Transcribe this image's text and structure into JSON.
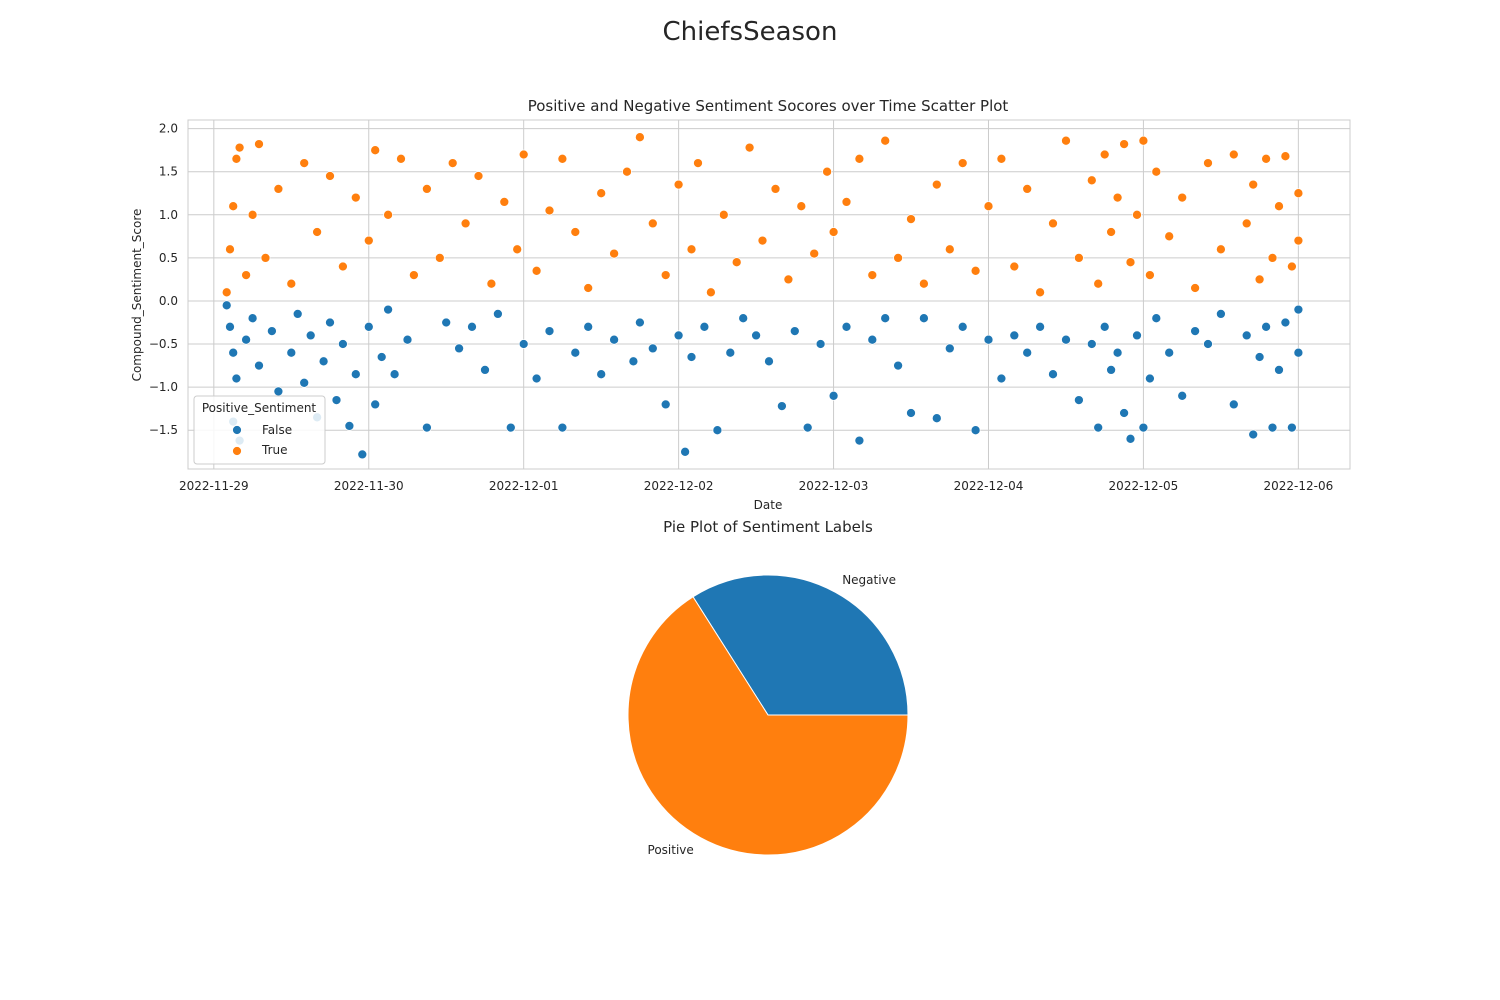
{
  "figure": {
    "title": "ChiefsSeason"
  },
  "chart_data": [
    {
      "type": "scatter",
      "title": "Positive and Negative Sentiment Socores over Time Scatter Plot",
      "xlabel": "Date",
      "ylabel": "Compound_Sentiment_Score",
      "xlim": [
        "2022-11-28T20:00",
        "2022-12-06T08:00"
      ],
      "ylim": [
        -1.95,
        2.1
      ],
      "x_ticks": [
        "2022-11-29",
        "2022-11-30",
        "2022-12-01",
        "2022-12-02",
        "2022-12-03",
        "2022-12-04",
        "2022-12-05",
        "2022-12-06"
      ],
      "y_ticks": [
        -1.5,
        -1.0,
        -0.5,
        0.0,
        0.5,
        1.0,
        1.5,
        2.0
      ],
      "y_tick_labels": [
        "−1.5",
        "−1.0",
        "−0.5",
        "0.0",
        "0.5",
        "1.0",
        "1.5",
        "2.0"
      ],
      "grid": true,
      "legend": {
        "title": "Positive_Sentiment",
        "placement": "lower-left",
        "entries": [
          {
            "label": "False",
            "color": "#1f77b4"
          },
          {
            "label": "True",
            "color": "#ff7f0e"
          }
        ]
      },
      "series": [
        {
          "name": "False",
          "color": "#1f77b4",
          "points": [
            [
              "2022-11-29T02:00",
              -0.05
            ],
            [
              "2022-11-29T02:30",
              -0.3
            ],
            [
              "2022-11-29T03:00",
              -0.6
            ],
            [
              "2022-11-29T03:30",
              -0.9
            ],
            [
              "2022-11-29T03:00",
              -1.4
            ],
            [
              "2022-11-29T04:00",
              -1.62
            ],
            [
              "2022-11-29T05:00",
              -0.45
            ],
            [
              "2022-11-29T06:00",
              -0.2
            ],
            [
              "2022-11-29T07:00",
              -0.75
            ],
            [
              "2022-11-29T09:00",
              -0.35
            ],
            [
              "2022-11-29T10:00",
              -1.05
            ],
            [
              "2022-11-29T12:00",
              -0.6
            ],
            [
              "2022-11-29T13:00",
              -0.15
            ],
            [
              "2022-11-29T14:00",
              -0.95
            ],
            [
              "2022-11-29T15:00",
              -0.4
            ],
            [
              "2022-11-29T16:00",
              -1.35
            ],
            [
              "2022-11-29T17:00",
              -0.7
            ],
            [
              "2022-11-29T18:00",
              -0.25
            ],
            [
              "2022-11-29T19:00",
              -1.15
            ],
            [
              "2022-11-29T20:00",
              -0.5
            ],
            [
              "2022-11-29T21:00",
              -1.45
            ],
            [
              "2022-11-29T22:00",
              -0.85
            ],
            [
              "2022-11-29T23:00",
              -1.78
            ],
            [
              "2022-11-30T00:00",
              -0.3
            ],
            [
              "2022-11-30T01:00",
              -1.2
            ],
            [
              "2022-11-30T02:00",
              -0.65
            ],
            [
              "2022-11-30T03:00",
              -0.1
            ],
            [
              "2022-11-30T04:00",
              -0.85
            ],
            [
              "2022-11-30T06:00",
              -0.45
            ],
            [
              "2022-11-30T09:00",
              -1.47
            ],
            [
              "2022-11-30T12:00",
              -0.25
            ],
            [
              "2022-11-30T14:00",
              -0.55
            ],
            [
              "2022-11-30T16:00",
              -0.3
            ],
            [
              "2022-11-30T18:00",
              -0.8
            ],
            [
              "2022-11-30T20:00",
              -0.15
            ],
            [
              "2022-11-30T22:00",
              -1.47
            ],
            [
              "2022-12-01T00:00",
              -0.5
            ],
            [
              "2022-12-01T02:00",
              -0.9
            ],
            [
              "2022-12-01T04:00",
              -0.35
            ],
            [
              "2022-12-01T06:00",
              -1.47
            ],
            [
              "2022-12-01T08:00",
              -0.6
            ],
            [
              "2022-12-01T10:00",
              -0.3
            ],
            [
              "2022-12-01T12:00",
              -0.85
            ],
            [
              "2022-12-01T14:00",
              -0.45
            ],
            [
              "2022-12-01T17:00",
              -0.7
            ],
            [
              "2022-12-01T18:00",
              -0.25
            ],
            [
              "2022-12-01T20:00",
              -0.55
            ],
            [
              "2022-12-01T22:00",
              -1.2
            ],
            [
              "2022-12-02T00:00",
              -0.4
            ],
            [
              "2022-12-02T01:00",
              -1.75
            ],
            [
              "2022-12-02T02:00",
              -0.65
            ],
            [
              "2022-12-02T04:00",
              -0.3
            ],
            [
              "2022-12-02T06:00",
              -1.5
            ],
            [
              "2022-12-02T08:00",
              -0.6
            ],
            [
              "2022-12-02T10:00",
              -0.2
            ],
            [
              "2022-12-02T12:00",
              -0.4
            ],
            [
              "2022-12-02T14:00",
              -0.7
            ],
            [
              "2022-12-02T16:00",
              -1.22
            ],
            [
              "2022-12-02T18:00",
              -0.35
            ],
            [
              "2022-12-02T20:00",
              -1.47
            ],
            [
              "2022-12-02T22:00",
              -0.5
            ],
            [
              "2022-12-03T00:00",
              -1.1
            ],
            [
              "2022-12-03T02:00",
              -0.3
            ],
            [
              "2022-12-03T04:00",
              -1.62
            ],
            [
              "2022-12-03T06:00",
              -0.45
            ],
            [
              "2022-12-03T08:00",
              -0.2
            ],
            [
              "2022-12-03T10:00",
              -0.75
            ],
            [
              "2022-12-03T12:00",
              -1.3
            ],
            [
              "2022-12-03T14:00",
              -0.2
            ],
            [
              "2022-12-03T16:00",
              -1.36
            ],
            [
              "2022-12-03T18:00",
              -0.55
            ],
            [
              "2022-12-03T20:00",
              -0.3
            ],
            [
              "2022-12-03T22:00",
              -1.5
            ],
            [
              "2022-12-04T00:00",
              -0.45
            ],
            [
              "2022-12-04T02:00",
              -0.9
            ],
            [
              "2022-12-04T04:00",
              -0.4
            ],
            [
              "2022-12-04T06:00",
              -0.6
            ],
            [
              "2022-12-04T08:00",
              -0.3
            ],
            [
              "2022-12-04T10:00",
              -0.85
            ],
            [
              "2022-12-04T12:00",
              -0.45
            ],
            [
              "2022-12-04T14:00",
              -1.15
            ],
            [
              "2022-12-04T16:00",
              -0.5
            ],
            [
              "2022-12-04T17:00",
              -1.47
            ],
            [
              "2022-12-04T18:00",
              -0.3
            ],
            [
              "2022-12-04T19:00",
              -0.8
            ],
            [
              "2022-12-04T20:00",
              -0.6
            ],
            [
              "2022-12-04T21:00",
              -1.3
            ],
            [
              "2022-12-04T22:00",
              -1.6
            ],
            [
              "2022-12-04T23:00",
              -0.4
            ],
            [
              "2022-12-05T00:00",
              -1.47
            ],
            [
              "2022-12-05T01:00",
              -0.9
            ],
            [
              "2022-12-05T02:00",
              -0.2
            ],
            [
              "2022-12-05T04:00",
              -0.6
            ],
            [
              "2022-12-05T06:00",
              -1.1
            ],
            [
              "2022-12-05T08:00",
              -0.35
            ],
            [
              "2022-12-05T10:00",
              -0.5
            ],
            [
              "2022-12-05T12:00",
              -0.15
            ],
            [
              "2022-12-05T14:00",
              -1.2
            ],
            [
              "2022-12-05T16:00",
              -0.4
            ],
            [
              "2022-12-05T17:00",
              -1.55
            ],
            [
              "2022-12-05T18:00",
              -0.65
            ],
            [
              "2022-12-05T19:00",
              -0.3
            ],
            [
              "2022-12-05T20:00",
              -1.47
            ],
            [
              "2022-12-05T21:00",
              -0.8
            ],
            [
              "2022-12-05T22:00",
              -0.25
            ],
            [
              "2022-12-05T23:00",
              -1.47
            ],
            [
              "2022-12-06T00:00",
              -0.6
            ],
            [
              "2022-12-06T00:00",
              -0.1
            ]
          ]
        },
        {
          "name": "True",
          "color": "#ff7f0e",
          "points": [
            [
              "2022-11-29T02:00",
              0.1
            ],
            [
              "2022-11-29T02:30",
              0.6
            ],
            [
              "2022-11-29T03:00",
              1.1
            ],
            [
              "2022-11-29T03:30",
              1.65
            ],
            [
              "2022-11-29T04:00",
              1.78
            ],
            [
              "2022-11-29T05:00",
              0.3
            ],
            [
              "2022-11-29T06:00",
              1.0
            ],
            [
              "2022-11-29T07:00",
              1.82
            ],
            [
              "2022-11-29T08:00",
              0.5
            ],
            [
              "2022-11-29T10:00",
              1.3
            ],
            [
              "2022-11-29T12:00",
              0.2
            ],
            [
              "2022-11-29T14:00",
              1.6
            ],
            [
              "2022-11-29T16:00",
              0.8
            ],
            [
              "2022-11-29T18:00",
              1.45
            ],
            [
              "2022-11-29T20:00",
              0.4
            ],
            [
              "2022-11-29T22:00",
              1.2
            ],
            [
              "2022-11-30T00:00",
              0.7
            ],
            [
              "2022-11-30T01:00",
              1.75
            ],
            [
              "2022-11-30T03:00",
              1.0
            ],
            [
              "2022-11-30T05:00",
              1.65
            ],
            [
              "2022-11-30T07:00",
              0.3
            ],
            [
              "2022-11-30T09:00",
              1.3
            ],
            [
              "2022-11-30T11:00",
              0.5
            ],
            [
              "2022-11-30T13:00",
              1.6
            ],
            [
              "2022-11-30T15:00",
              0.9
            ],
            [
              "2022-11-30T17:00",
              1.45
            ],
            [
              "2022-11-30T19:00",
              0.2
            ],
            [
              "2022-11-30T21:00",
              1.15
            ],
            [
              "2022-11-30T23:00",
              0.6
            ],
            [
              "2022-12-01T00:00",
              1.7
            ],
            [
              "2022-12-01T02:00",
              0.35
            ],
            [
              "2022-12-01T04:00",
              1.05
            ],
            [
              "2022-12-01T06:00",
              1.65
            ],
            [
              "2022-12-01T08:00",
              0.8
            ],
            [
              "2022-12-01T10:00",
              0.15
            ],
            [
              "2022-12-01T12:00",
              1.25
            ],
            [
              "2022-12-01T14:00",
              0.55
            ],
            [
              "2022-12-01T16:00",
              1.5
            ],
            [
              "2022-12-01T18:00",
              1.9
            ],
            [
              "2022-12-01T20:00",
              0.9
            ],
            [
              "2022-12-01T22:00",
              0.3
            ],
            [
              "2022-12-02T00:00",
              1.35
            ],
            [
              "2022-12-02T02:00",
              0.6
            ],
            [
              "2022-12-02T03:00",
              1.6
            ],
            [
              "2022-12-02T05:00",
              0.1
            ],
            [
              "2022-12-02T07:00",
              1.0
            ],
            [
              "2022-12-02T09:00",
              0.45
            ],
            [
              "2022-12-02T11:00",
              1.78
            ],
            [
              "2022-12-02T13:00",
              0.7
            ],
            [
              "2022-12-02T15:00",
              1.3
            ],
            [
              "2022-12-02T17:00",
              0.25
            ],
            [
              "2022-12-02T19:00",
              1.1
            ],
            [
              "2022-12-02T21:00",
              0.55
            ],
            [
              "2022-12-02T23:00",
              1.5
            ],
            [
              "2022-12-03T00:00",
              0.8
            ],
            [
              "2022-12-03T02:00",
              1.15
            ],
            [
              "2022-12-03T04:00",
              1.65
            ],
            [
              "2022-12-03T06:00",
              0.3
            ],
            [
              "2022-12-03T08:00",
              1.86
            ],
            [
              "2022-12-03T10:00",
              0.5
            ],
            [
              "2022-12-03T12:00",
              0.95
            ],
            [
              "2022-12-03T14:00",
              0.2
            ],
            [
              "2022-12-03T16:00",
              1.35
            ],
            [
              "2022-12-03T18:00",
              0.6
            ],
            [
              "2022-12-03T20:00",
              1.6
            ],
            [
              "2022-12-03T22:00",
              0.35
            ],
            [
              "2022-12-04T00:00",
              1.1
            ],
            [
              "2022-12-04T02:00",
              1.65
            ],
            [
              "2022-12-04T04:00",
              0.4
            ],
            [
              "2022-12-04T06:00",
              1.3
            ],
            [
              "2022-12-04T08:00",
              0.1
            ],
            [
              "2022-12-04T10:00",
              0.9
            ],
            [
              "2022-12-04T12:00",
              1.86
            ],
            [
              "2022-12-04T14:00",
              0.5
            ],
            [
              "2022-12-04T16:00",
              1.4
            ],
            [
              "2022-12-04T17:00",
              0.2
            ],
            [
              "2022-12-04T18:00",
              1.7
            ],
            [
              "2022-12-04T19:00",
              0.8
            ],
            [
              "2022-12-04T20:00",
              1.2
            ],
            [
              "2022-12-04T21:00",
              1.82
            ],
            [
              "2022-12-04T22:00",
              0.45
            ],
            [
              "2022-12-04T23:00",
              1.0
            ],
            [
              "2022-12-05T00:00",
              1.86
            ],
            [
              "2022-12-05T01:00",
              0.3
            ],
            [
              "2022-12-05T02:00",
              1.5
            ],
            [
              "2022-12-05T04:00",
              0.75
            ],
            [
              "2022-12-05T06:00",
              1.2
            ],
            [
              "2022-12-05T08:00",
              0.15
            ],
            [
              "2022-12-05T10:00",
              1.6
            ],
            [
              "2022-12-05T12:00",
              0.6
            ],
            [
              "2022-12-05T14:00",
              1.7
            ],
            [
              "2022-12-05T16:00",
              0.9
            ],
            [
              "2022-12-05T17:00",
              1.35
            ],
            [
              "2022-12-05T18:00",
              0.25
            ],
            [
              "2022-12-05T19:00",
              1.65
            ],
            [
              "2022-12-05T20:00",
              0.5
            ],
            [
              "2022-12-05T21:00",
              1.1
            ],
            [
              "2022-12-05T22:00",
              1.68
            ],
            [
              "2022-12-05T23:00",
              0.4
            ],
            [
              "2022-12-06T00:00",
              1.25
            ],
            [
              "2022-12-06T00:00",
              0.7
            ]
          ]
        }
      ]
    },
    {
      "type": "pie",
      "title": "Pie Plot of Sentiment Labels",
      "start_angle_deg": 0,
      "direction": "counterclockwise",
      "slices": [
        {
          "label": "Negative",
          "value": 0.34,
          "color": "#1f77b4"
        },
        {
          "label": "Positive",
          "value": 0.66,
          "color": "#ff7f0e"
        }
      ]
    }
  ]
}
